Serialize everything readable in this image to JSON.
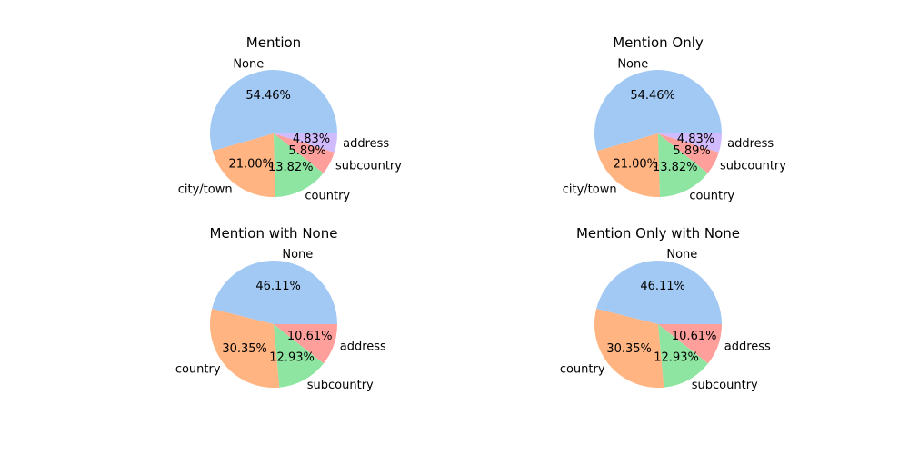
{
  "chart_data": [
    {
      "type": "pie",
      "title": "Mention",
      "slices": [
        {
          "label": "None",
          "value": 54.46,
          "pct_label": "54.46%",
          "color": "#a1c9f4"
        },
        {
          "label": "city/town",
          "value": 21.0,
          "pct_label": "21.00%",
          "color": "#ffb482"
        },
        {
          "label": "country",
          "value": 13.82,
          "pct_label": "13.82%",
          "color": "#8de5a1"
        },
        {
          "label": "subcountry",
          "value": 5.89,
          "pct_label": "5.89%",
          "color": "#ff9f9b"
        },
        {
          "label": "address",
          "value": 4.83,
          "pct_label": "4.83%",
          "color": "#d0bbff"
        }
      ]
    },
    {
      "type": "pie",
      "title": "Mention Only",
      "slices": [
        {
          "label": "None",
          "value": 54.46,
          "pct_label": "54.46%",
          "color": "#a1c9f4"
        },
        {
          "label": "city/town",
          "value": 21.0,
          "pct_label": "21.00%",
          "color": "#ffb482"
        },
        {
          "label": "country",
          "value": 13.82,
          "pct_label": "13.82%",
          "color": "#8de5a1"
        },
        {
          "label": "subcountry",
          "value": 5.89,
          "pct_label": "5.89%",
          "color": "#ff9f9b"
        },
        {
          "label": "address",
          "value": 4.83,
          "pct_label": "4.83%",
          "color": "#d0bbff"
        }
      ]
    },
    {
      "type": "pie",
      "title": "Mention with None",
      "slices": [
        {
          "label": "None",
          "value": 46.11,
          "pct_label": "46.11%",
          "color": "#a1c9f4"
        },
        {
          "label": "country",
          "value": 30.35,
          "pct_label": "30.35%",
          "color": "#ffb482"
        },
        {
          "label": "subcountry",
          "value": 12.93,
          "pct_label": "12.93%",
          "color": "#8de5a1"
        },
        {
          "label": "address",
          "value": 10.61,
          "pct_label": "10.61%",
          "color": "#ff9f9b"
        }
      ]
    },
    {
      "type": "pie",
      "title": "Mention Only with None",
      "slices": [
        {
          "label": "None",
          "value": 46.11,
          "pct_label": "46.11%",
          "color": "#a1c9f4"
        },
        {
          "label": "country",
          "value": 30.35,
          "pct_label": "30.35%",
          "color": "#ffb482"
        },
        {
          "label": "subcountry",
          "value": 12.93,
          "pct_label": "12.93%",
          "color": "#8de5a1"
        },
        {
          "label": "address",
          "value": 10.61,
          "pct_label": "10.61%",
          "color": "#ff9f9b"
        }
      ]
    }
  ]
}
